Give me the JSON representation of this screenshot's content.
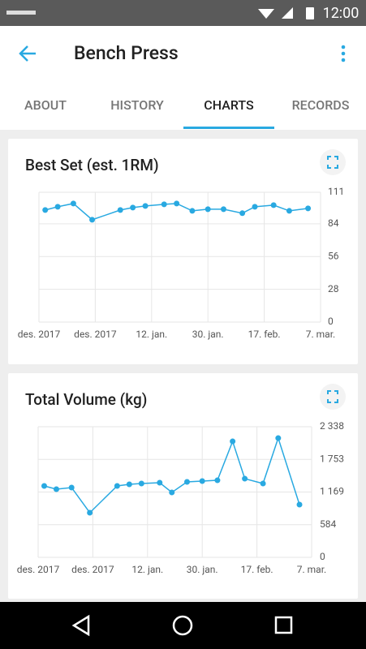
{
  "status_bar": {
    "time": "12:00"
  },
  "header": {
    "title": "Bench Press"
  },
  "tabs": [
    "ABOUT",
    "HISTORY",
    "CHARTS",
    "RECORDS"
  ],
  "chart_data": [
    {
      "type": "line",
      "title": "Best Set (est. 1RM)",
      "color": "#29a9e1",
      "grid": true,
      "x": [
        2,
        6,
        11,
        17,
        26,
        30,
        34,
        40,
        44,
        49,
        54,
        59,
        65,
        69,
        75,
        80,
        86
      ],
      "series": [
        {
          "values": [
            95.8,
            98.6,
            101.4,
            87.5,
            95.8,
            97.9,
            99.3,
            100.7,
            101.4,
            95.1,
            96.5,
            96.5,
            93.1,
            98.6,
            100,
            95.1,
            97.2
          ]
        }
      ],
      "xlim": [
        0,
        90
      ],
      "xticks": [
        {
          "value": 0,
          "label": "des. 2017"
        },
        {
          "value": 18,
          "label": "des. 2017"
        },
        {
          "value": 36,
          "label": "12. jan."
        },
        {
          "value": 54,
          "label": "30. jan."
        },
        {
          "value": 72,
          "label": "17. feb."
        },
        {
          "value": 90,
          "label": "7. mar."
        }
      ],
      "ylim": [
        0,
        111
      ],
      "yticks": [
        0,
        28,
        56,
        84,
        111
      ]
    },
    {
      "type": "line",
      "title": "Total Volume (kg)",
      "color": "#29a9e1",
      "grid": true,
      "x": [
        2,
        6,
        11,
        17,
        26,
        30,
        34,
        40,
        44,
        49,
        54,
        59,
        64,
        68,
        74,
        79,
        86
      ],
      "series": [
        {
          "values": [
            1278,
            1220,
            1249,
            799,
            1278,
            1307,
            1321,
            1336,
            1162,
            1350,
            1365,
            1379,
            2076,
            1408,
            1321,
            2134,
            944
          ]
        }
      ],
      "xlim": [
        0,
        90
      ],
      "xticks": [
        {
          "value": 0,
          "label": "des. 2017"
        },
        {
          "value": 18,
          "label": "des. 2017"
        },
        {
          "value": 36,
          "label": "12. jan."
        },
        {
          "value": 54,
          "label": "30. jan."
        },
        {
          "value": 72,
          "label": "17. feb."
        },
        {
          "value": 90,
          "label": "7. mar."
        }
      ],
      "ylim": [
        0,
        2338
      ],
      "yticks": [
        0,
        584,
        {
          "value": 1169,
          "label": "1 169"
        },
        {
          "value": 1753,
          "label": "1 753"
        },
        {
          "value": 2338,
          "label": "2 338"
        }
      ]
    }
  ]
}
